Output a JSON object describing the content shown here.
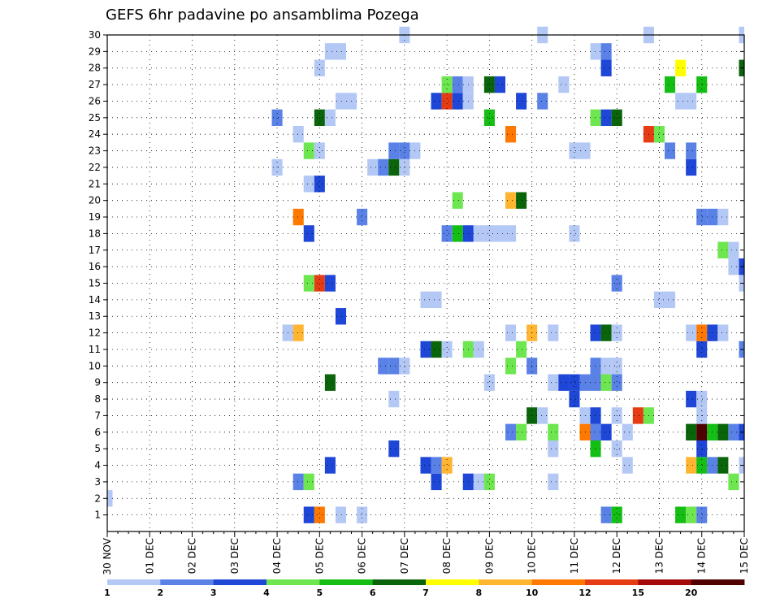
{
  "chart_data": {
    "type": "heatmap",
    "title": "GEFS 6hr padavine po ansamblima Pozega",
    "xlabel": "",
    "ylabel": "",
    "x_tick_labels": [
      "30 NOV",
      "01 DEC",
      "02 DEC",
      "03 DEC",
      "04 DEC",
      "05 DEC",
      "06 DEC",
      "07 DEC",
      "08 DEC",
      "09 DEC",
      "10 DEC",
      "11 DEC",
      "12 DEC",
      "13 DEC",
      "14 DEC",
      "15 DEC"
    ],
    "y_tick_labels": [
      "1",
      "2",
      "3",
      "4",
      "5",
      "6",
      "7",
      "8",
      "9",
      "10",
      "11",
      "12",
      "13",
      "14",
      "15",
      "16",
      "17",
      "18",
      "19",
      "20",
      "21",
      "22",
      "23",
      "24",
      "25",
      "26",
      "27",
      "28",
      "29",
      "30"
    ],
    "x_unit": "6-hour steps from 30 NOV 00Z",
    "x_range": [
      0,
      60
    ],
    "y_range": [
      0,
      30
    ],
    "grid": true,
    "colorbar": {
      "labels": [
        "1",
        "2",
        "3",
        "4",
        "5",
        "6",
        "7",
        "8",
        "10",
        "12",
        "15",
        "20"
      ],
      "colors": [
        "#b4c8f5",
        "#5a82e6",
        "#1e46d7",
        "#6ee650",
        "#14be14",
        "#0a640a",
        "#ffff00",
        "#ffb432",
        "#ff7800",
        "#e63c14",
        "#a50a0a",
        "#500000"
      ]
    },
    "cells": [
      [
        1,
        19,
        2
      ],
      [
        1,
        20,
        8
      ],
      [
        1,
        22,
        0
      ],
      [
        1,
        24,
        0
      ],
      [
        1,
        47,
        1
      ],
      [
        1,
        48,
        4
      ],
      [
        1,
        54,
        4
      ],
      [
        1,
        55,
        3
      ],
      [
        1,
        56,
        1
      ],
      [
        2,
        0,
        0
      ],
      [
        3,
        18,
        1
      ],
      [
        3,
        19,
        3
      ],
      [
        3,
        31,
        2
      ],
      [
        3,
        34,
        2
      ],
      [
        3,
        35,
        0
      ],
      [
        3,
        36,
        3
      ],
      [
        3,
        42,
        0
      ],
      [
        3,
        59,
        3
      ],
      [
        4,
        21,
        2
      ],
      [
        4,
        30,
        2
      ],
      [
        4,
        31,
        1
      ],
      [
        4,
        32,
        7
      ],
      [
        4,
        49,
        0
      ],
      [
        4,
        55,
        7
      ],
      [
        4,
        56,
        4
      ],
      [
        4,
        57,
        1
      ],
      [
        4,
        58,
        5
      ],
      [
        4,
        60,
        0
      ],
      [
        5,
        27,
        2
      ],
      [
        5,
        42,
        0
      ],
      [
        5,
        46,
        4
      ],
      [
        5,
        48,
        0
      ],
      [
        5,
        56,
        2
      ],
      [
        6,
        38,
        1
      ],
      [
        6,
        39,
        3
      ],
      [
        6,
        42,
        3
      ],
      [
        6,
        45,
        8
      ],
      [
        6,
        46,
        1
      ],
      [
        6,
        47,
        2
      ],
      [
        6,
        49,
        0
      ],
      [
        6,
        55,
        5
      ],
      [
        6,
        56,
        11
      ],
      [
        6,
        57,
        4
      ],
      [
        6,
        58,
        5
      ],
      [
        6,
        59,
        1
      ],
      [
        6,
        60,
        2
      ],
      [
        7,
        40,
        5
      ],
      [
        7,
        41,
        0
      ],
      [
        7,
        45,
        0
      ],
      [
        7,
        46,
        2
      ],
      [
        7,
        48,
        0
      ],
      [
        7,
        50,
        9
      ],
      [
        7,
        51,
        3
      ],
      [
        7,
        56,
        0
      ],
      [
        8,
        27,
        0
      ],
      [
        8,
        44,
        2
      ],
      [
        8,
        55,
        2
      ],
      [
        8,
        56,
        0
      ],
      [
        9,
        21,
        5
      ],
      [
        9,
        36,
        0
      ],
      [
        9,
        42,
        0
      ],
      [
        9,
        43,
        2
      ],
      [
        9,
        44,
        2
      ],
      [
        9,
        45,
        1
      ],
      [
        9,
        46,
        1
      ],
      [
        9,
        47,
        3
      ],
      [
        9,
        48,
        1
      ],
      [
        10,
        26,
        1
      ],
      [
        10,
        27,
        1
      ],
      [
        10,
        28,
        0
      ],
      [
        10,
        38,
        3
      ],
      [
        10,
        40,
        1
      ],
      [
        10,
        46,
        1
      ],
      [
        10,
        47,
        0
      ],
      [
        10,
        48,
        0
      ],
      [
        11,
        30,
        2
      ],
      [
        11,
        31,
        5
      ],
      [
        11,
        32,
        0
      ],
      [
        11,
        34,
        3
      ],
      [
        11,
        35,
        0
      ],
      [
        11,
        39,
        3
      ],
      [
        11,
        56,
        2
      ],
      [
        11,
        60,
        1
      ],
      [
        12,
        17,
        0
      ],
      [
        12,
        18,
        7
      ],
      [
        12,
        38,
        0
      ],
      [
        12,
        40,
        7
      ],
      [
        12,
        42,
        0
      ],
      [
        12,
        46,
        2
      ],
      [
        12,
        47,
        5
      ],
      [
        12,
        48,
        0
      ],
      [
        12,
        55,
        0
      ],
      [
        12,
        56,
        8
      ],
      [
        12,
        57,
        2
      ],
      [
        12,
        58,
        0
      ],
      [
        13,
        22,
        2
      ],
      [
        14,
        30,
        0
      ],
      [
        14,
        31,
        0
      ],
      [
        14,
        52,
        0
      ],
      [
        14,
        53,
        0
      ],
      [
        15,
        19,
        3
      ],
      [
        15,
        20,
        9
      ],
      [
        15,
        21,
        2
      ],
      [
        15,
        48,
        1
      ],
      [
        15,
        60,
        0
      ],
      [
        16,
        59,
        0
      ],
      [
        16,
        60,
        2
      ],
      [
        17,
        58,
        3
      ],
      [
        17,
        59,
        0
      ],
      [
        18,
        19,
        2
      ],
      [
        18,
        32,
        1
      ],
      [
        18,
        33,
        4
      ],
      [
        18,
        34,
        2
      ],
      [
        18,
        35,
        0
      ],
      [
        18,
        36,
        0
      ],
      [
        18,
        37,
        0
      ],
      [
        18,
        38,
        0
      ],
      [
        18,
        44,
        0
      ],
      [
        19,
        18,
        8
      ],
      [
        19,
        24,
        1
      ],
      [
        19,
        56,
        1
      ],
      [
        19,
        57,
        1
      ],
      [
        19,
        58,
        0
      ],
      [
        20,
        33,
        3
      ],
      [
        20,
        38,
        7
      ],
      [
        20,
        39,
        5
      ],
      [
        21,
        19,
        0
      ],
      [
        21,
        20,
        2
      ],
      [
        22,
        16,
        0
      ],
      [
        22,
        25,
        0
      ],
      [
        22,
        26,
        1
      ],
      [
        22,
        27,
        5
      ],
      [
        22,
        28,
        0
      ],
      [
        22,
        55,
        2
      ],
      [
        23,
        19,
        3
      ],
      [
        23,
        20,
        0
      ],
      [
        23,
        27,
        1
      ],
      [
        23,
        28,
        1
      ],
      [
        23,
        29,
        0
      ],
      [
        23,
        44,
        0
      ],
      [
        23,
        45,
        0
      ],
      [
        23,
        53,
        1
      ],
      [
        23,
        55,
        1
      ],
      [
        24,
        18,
        0
      ],
      [
        24,
        38,
        8
      ],
      [
        24,
        51,
        9
      ],
      [
        24,
        52,
        3
      ],
      [
        25,
        16,
        1
      ],
      [
        25,
        20,
        5
      ],
      [
        25,
        21,
        0
      ],
      [
        25,
        36,
        4
      ],
      [
        25,
        46,
        3
      ],
      [
        25,
        47,
        2
      ],
      [
        25,
        48,
        5
      ],
      [
        26,
        22,
        0
      ],
      [
        26,
        23,
        0
      ],
      [
        26,
        31,
        2
      ],
      [
        26,
        32,
        9
      ],
      [
        26,
        33,
        2
      ],
      [
        26,
        34,
        0
      ],
      [
        26,
        39,
        2
      ],
      [
        26,
        41,
        1
      ],
      [
        26,
        54,
        0
      ],
      [
        26,
        55,
        0
      ],
      [
        27,
        32,
        3
      ],
      [
        27,
        33,
        1
      ],
      [
        27,
        34,
        0
      ],
      [
        27,
        36,
        5
      ],
      [
        27,
        37,
        2
      ],
      [
        27,
        43,
        0
      ],
      [
        27,
        53,
        4
      ],
      [
        27,
        56,
        4
      ],
      [
        28,
        20,
        0
      ],
      [
        28,
        47,
        2
      ],
      [
        28,
        54,
        6
      ],
      [
        28,
        60,
        5
      ],
      [
        29,
        21,
        0
      ],
      [
        29,
        22,
        0
      ],
      [
        29,
        46,
        0
      ],
      [
        29,
        47,
        1
      ],
      [
        30,
        28,
        0
      ],
      [
        30,
        41,
        0
      ],
      [
        30,
        51,
        0
      ],
      [
        30,
        60,
        0
      ]
    ]
  }
}
